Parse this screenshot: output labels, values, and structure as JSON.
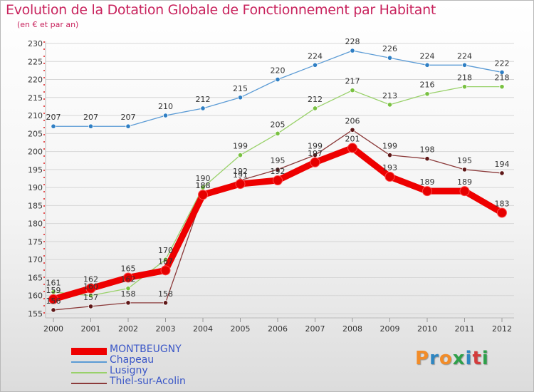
{
  "chart_data": {
    "type": "line",
    "title": "Evolution de la Dotation Globale de Fonctionnement par Habitant",
    "subtitle": "(en € et par an)",
    "xlabel": "",
    "ylabel": "",
    "ylim": [
      155,
      230
    ],
    "y_ticks": [
      155,
      160,
      165,
      170,
      175,
      180,
      185,
      190,
      195,
      200,
      205,
      210,
      215,
      220,
      225,
      230
    ],
    "categories": [
      "2000",
      "2001",
      "2002",
      "2003",
      "2004",
      "2005",
      "2006",
      "2007",
      "2008",
      "2009",
      "2010",
      "2011",
      "2012"
    ],
    "grid": "horizontal",
    "legend_position": "bottom-left",
    "series": [
      {
        "name": "Chapeau",
        "color": "#5b9bd5",
        "dot": "#2f7fc4",
        "width": "thin",
        "values": [
          207,
          207,
          207,
          210,
          212,
          215,
          220,
          224,
          228,
          226,
          224,
          224,
          222
        ],
        "labels": [
          "207",
          "207",
          "207",
          "210",
          "212",
          "215",
          "220",
          "224",
          "228",
          "226",
          "224",
          "224",
          "222"
        ]
      },
      {
        "name": "Lusigny",
        "color": "#99d16a",
        "dot": "#79c141",
        "width": "thin",
        "values": [
          161,
          160,
          162,
          170,
          190,
          199,
          205,
          212,
          217,
          213,
          216,
          218,
          218
        ],
        "labels": [
          "161",
          "160",
          "162",
          "170",
          "190",
          "199",
          "205",
          "212",
          "217",
          "213",
          "216",
          "218",
          "218"
        ]
      },
      {
        "name": "Thiel-sur-Acolin",
        "color": "#8b3a3a",
        "dot": "#5e1717",
        "width": "thin",
        "values": [
          156,
          157,
          158,
          158,
          188,
          192,
          195,
          199,
          206,
          199,
          198,
          195,
          194
        ],
        "labels": [
          "156",
          "157",
          "158",
          "158",
          "188",
          "192",
          "195",
          "199",
          "206",
          "199",
          "198",
          "195",
          "194"
        ]
      },
      {
        "name": "MONTBEUGNY",
        "color": "#ee0000",
        "dot": "#e60000",
        "width": "thick",
        "values": [
          159,
          162,
          165,
          167,
          188,
          191,
          192,
          197,
          201,
          193,
          189,
          189,
          183
        ],
        "labels": [
          "159",
          "162",
          "165",
          "167",
          "188",
          "191",
          "192",
          "197",
          "201",
          "193",
          "189",
          "189",
          "183"
        ]
      }
    ],
    "legend_order": [
      "MONTBEUGNY",
      "Chapeau",
      "Lusigny",
      "Thiel-sur-Acolin"
    ]
  },
  "brand": {
    "letters": [
      "P",
      "r",
      "o",
      "x",
      "i",
      "t",
      "i"
    ],
    "colors": [
      "#f28c28",
      "#2e86c1",
      "#f28c28",
      "#2ea04a",
      "#2e86c1",
      "#d33c3c",
      "#2ea04a"
    ]
  }
}
